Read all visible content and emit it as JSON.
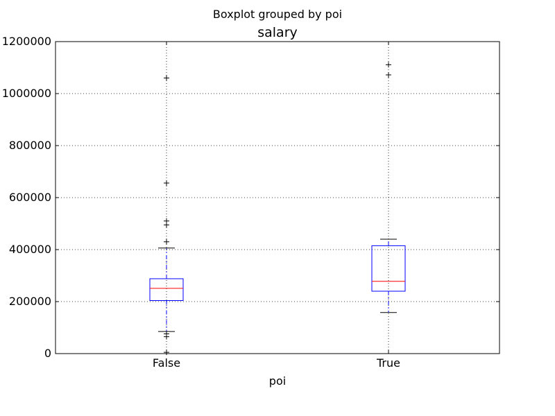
{
  "figure": {
    "suptitle": "Boxplot grouped by poi"
  },
  "chart_data": {
    "type": "box",
    "title": "salary",
    "xlabel": "poi",
    "ylabel": "",
    "ylim": [
      0,
      1200000
    ],
    "yticks": [
      0,
      200000,
      400000,
      600000,
      800000,
      1000000,
      1200000
    ],
    "ytick_labels": [
      "0",
      "200000",
      "400000",
      "600000",
      "800000",
      "1000000",
      "1200000"
    ],
    "grid": true,
    "categories": [
      "False",
      "True"
    ],
    "boxes": [
      {
        "category": "False",
        "whisker_low": 85000,
        "q1": 204000,
        "median": 251000,
        "q3": 288000,
        "whisker_high": 406000,
        "outliers": [
          1060000,
          656000,
          510000,
          495000,
          430000,
          76000,
          65000,
          5000
        ]
      },
      {
        "category": "True",
        "whisker_low": 158000,
        "q1": 240000,
        "median": 278000,
        "q3": 415000,
        "whisker_high": 440000,
        "outliers": [
          1111000,
          1072000
        ]
      }
    ],
    "colors": {
      "box": "#0000ff",
      "median": "#ff0000",
      "whisker": "#0000ff",
      "cap": "#000000",
      "flier": "#000000",
      "grid": "#000000"
    }
  }
}
